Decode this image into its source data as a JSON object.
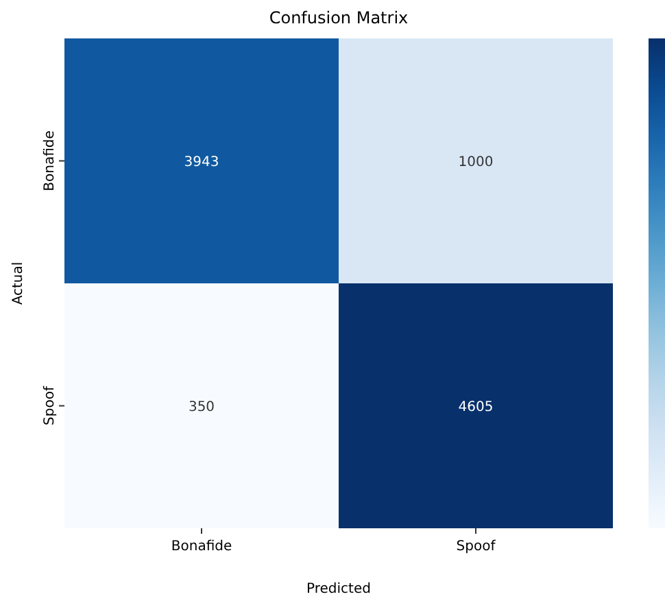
{
  "chart_data": {
    "type": "heatmap",
    "title": "Confusion Matrix",
    "xlabel": "Predicted",
    "ylabel": "Actual",
    "categories": [
      "Bonafide",
      "Spoof"
    ],
    "y_categories": [
      "Bonafide",
      "Spoof"
    ],
    "cells": [
      [
        3943,
        1000
      ],
      [
        350,
        4605
      ]
    ],
    "data_labels": true
  }
}
